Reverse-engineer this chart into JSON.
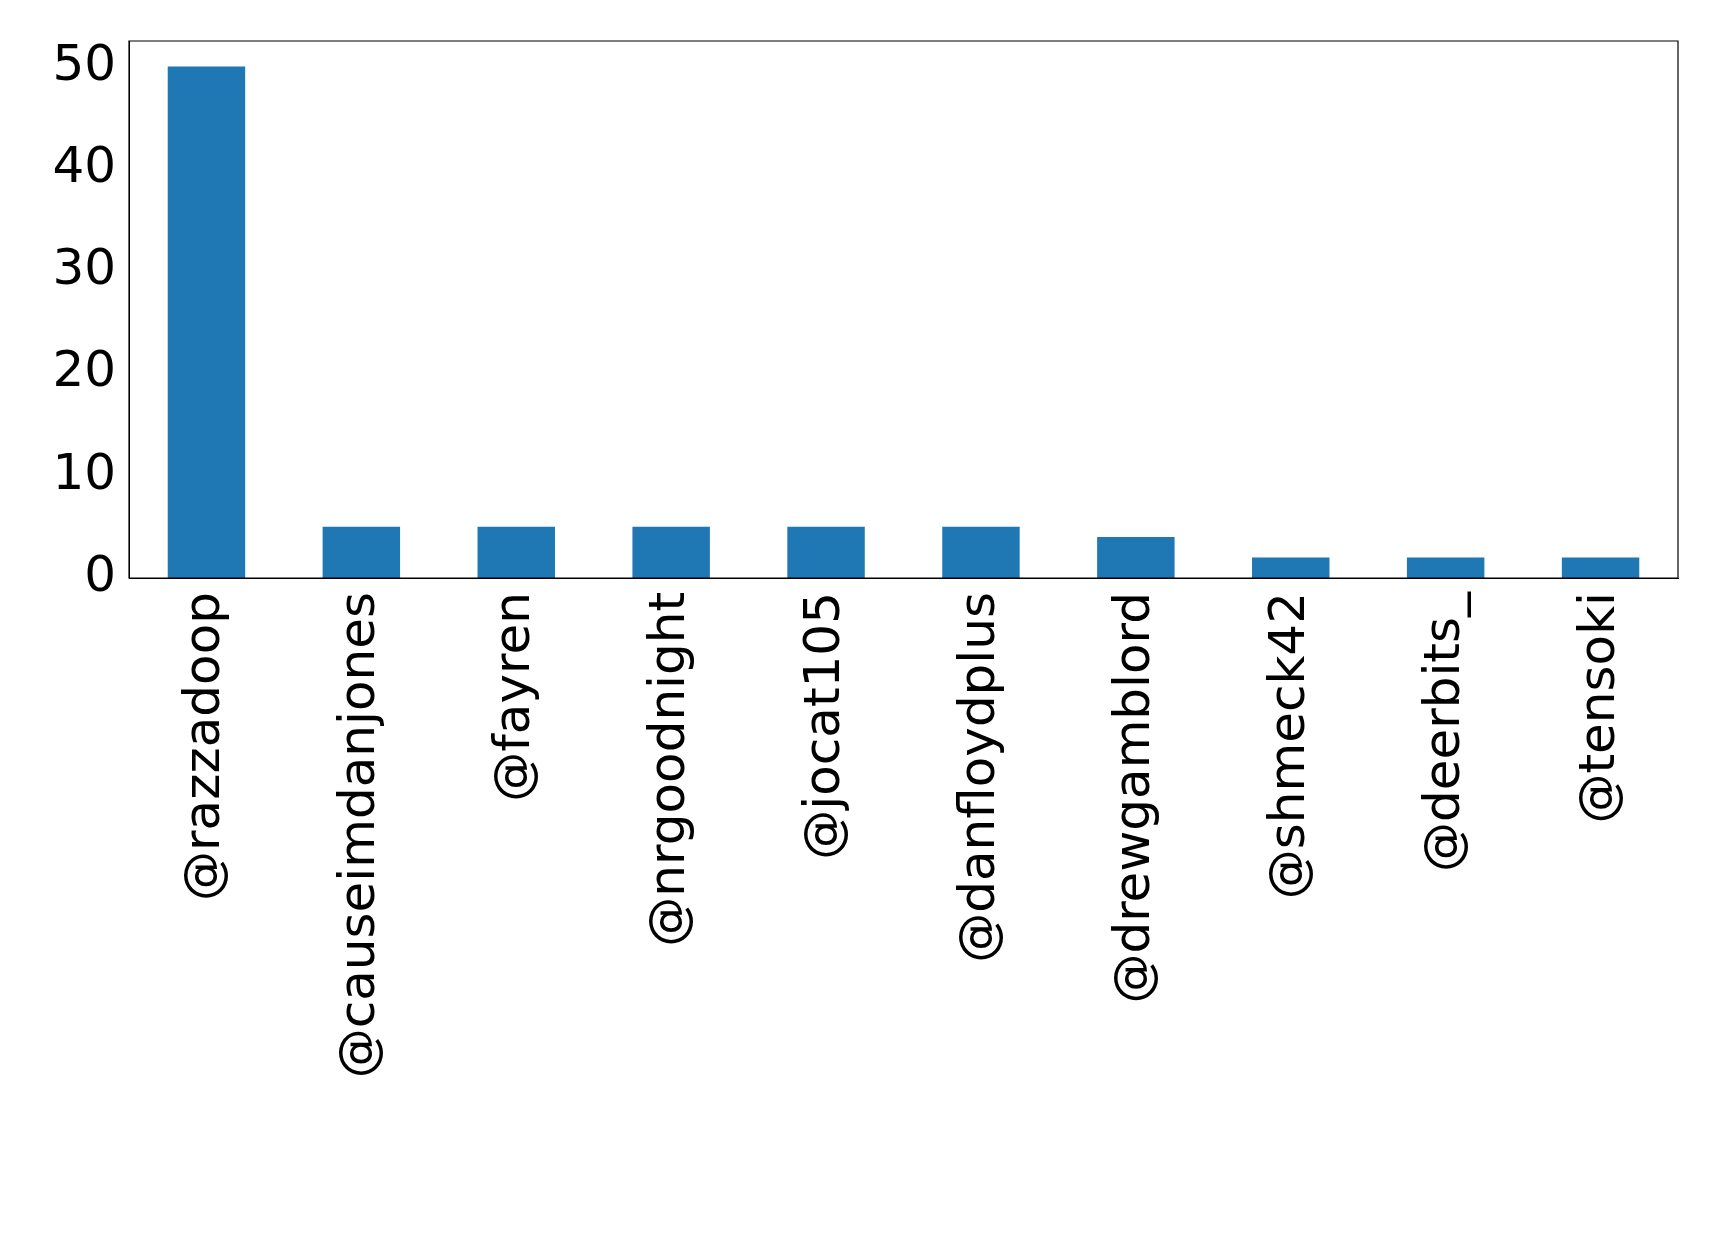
{
  "chart_data": {
    "type": "bar",
    "categories": [
      "@razzadoop",
      "@causeimdanjones",
      "@fayren",
      "@nrgoodnight",
      "@jocat105",
      "@danfloydplus",
      "@drewgamblord",
      "@shmeck42",
      "@deerbits_",
      "@tensoki"
    ],
    "values": [
      50,
      5,
      5,
      5,
      5,
      5,
      4,
      2,
      2,
      2
    ],
    "color": "#1f77b4",
    "ylim": [
      0,
      52.5
    ],
    "yticks": [
      0,
      10,
      20,
      30,
      40,
      50
    ],
    "grid": false,
    "legend": false
  }
}
